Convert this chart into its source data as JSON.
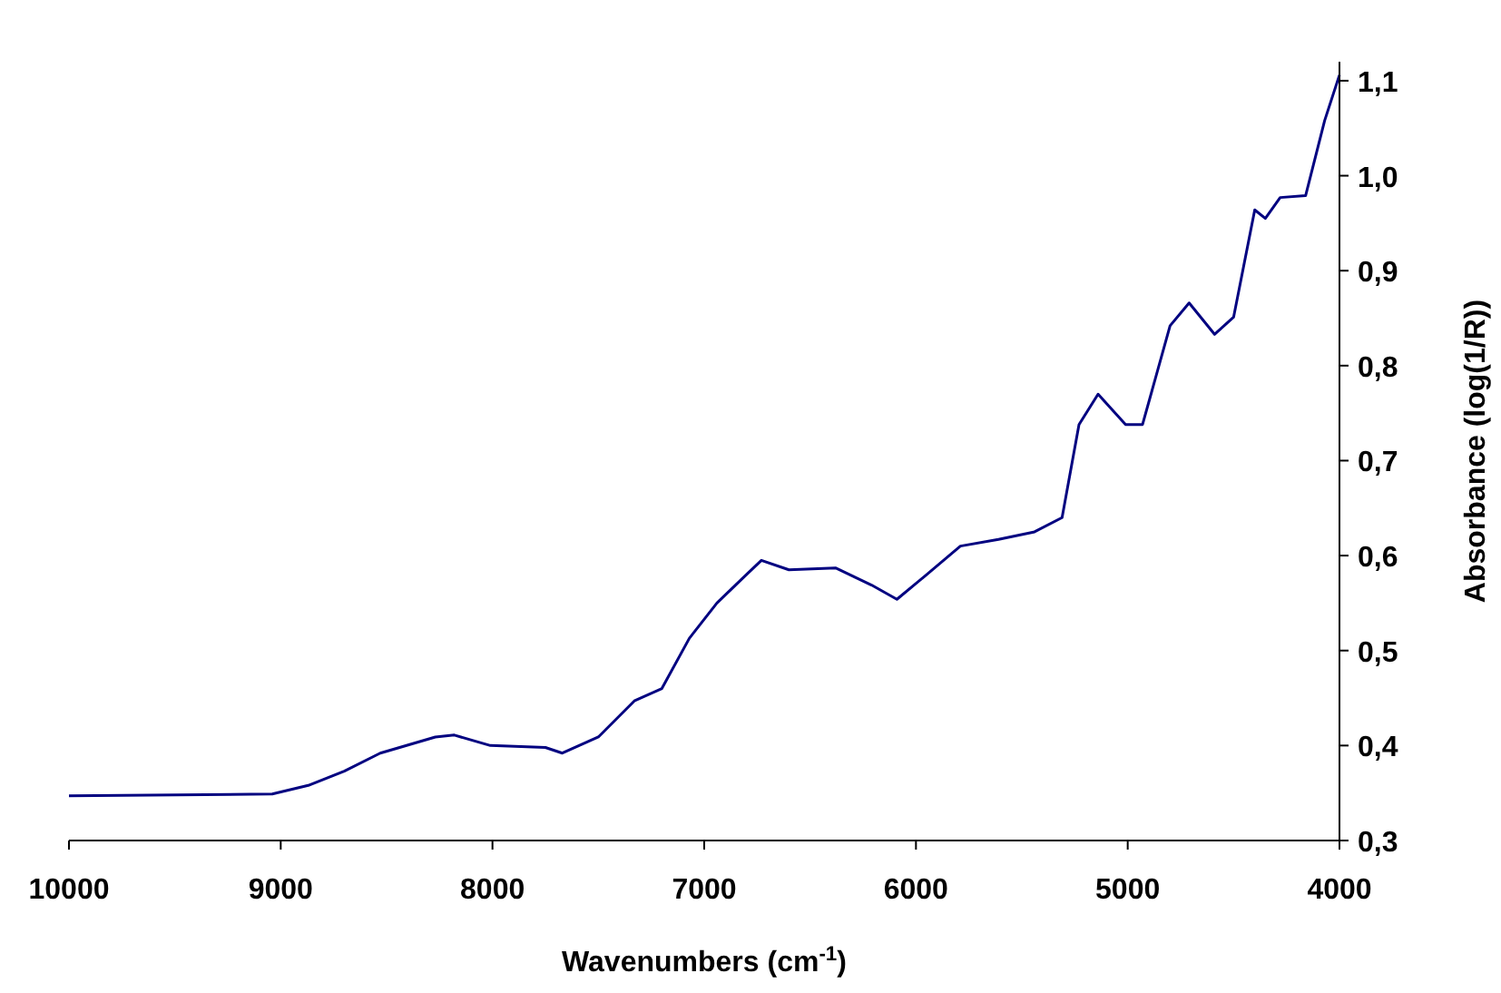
{
  "chart_data": {
    "type": "line",
    "xlabel": "Wavenumbers (cm$^{-1}$)",
    "ylabel": "Absorbance (log(1/R))",
    "xlim": [
      10000,
      4000
    ],
    "xticks": [
      10000,
      9000,
      8000,
      7000,
      6000,
      5000,
      4000
    ],
    "ylim": [
      0.3,
      1.12
    ],
    "yticks": [
      {
        "value": 0.3,
        "label": "0,3"
      },
      {
        "value": 0.4,
        "label": "0,4"
      },
      {
        "value": 0.5,
        "label": "0,5"
      },
      {
        "value": 0.6,
        "label": "0,6"
      },
      {
        "value": 0.7,
        "label": "0,7"
      },
      {
        "value": 0.8,
        "label": "0,8"
      },
      {
        "value": 0.9,
        "label": "0,9"
      },
      {
        "value": 1.0,
        "label": "1,0"
      },
      {
        "value": 1.1,
        "label": "1,1"
      }
    ],
    "grid": false,
    "marker": "none",
    "line_style": "solid",
    "series": [
      {
        "color": "#000080",
        "x": [
          10000,
          9040,
          8870,
          8700,
          8530,
          8270,
          8180,
          8010,
          7750,
          7670,
          7500,
          7330,
          7200,
          7070,
          6940,
          6810,
          6730,
          6600,
          6380,
          6210,
          6090,
          5960,
          5790,
          5610,
          5440,
          5310,
          5230,
          5140,
          5010,
          4930,
          4800,
          4710,
          4590,
          4500,
          4400,
          4350,
          4280,
          4160,
          4070,
          4000
        ],
        "values": [
          0.347,
          0.349,
          0.358,
          0.373,
          0.392,
          0.409,
          0.411,
          0.4,
          0.398,
          0.392,
          0.409,
          0.447,
          0.46,
          0.513,
          0.55,
          0.578,
          0.595,
          0.585,
          0.587,
          0.569,
          0.554,
          0.578,
          0.61,
          0.617,
          0.625,
          0.64,
          0.738,
          0.77,
          0.738,
          0.738,
          0.842,
          0.866,
          0.833,
          0.851,
          0.964,
          0.955,
          0.977,
          0.979,
          1.058,
          1.106
        ]
      }
    ]
  }
}
